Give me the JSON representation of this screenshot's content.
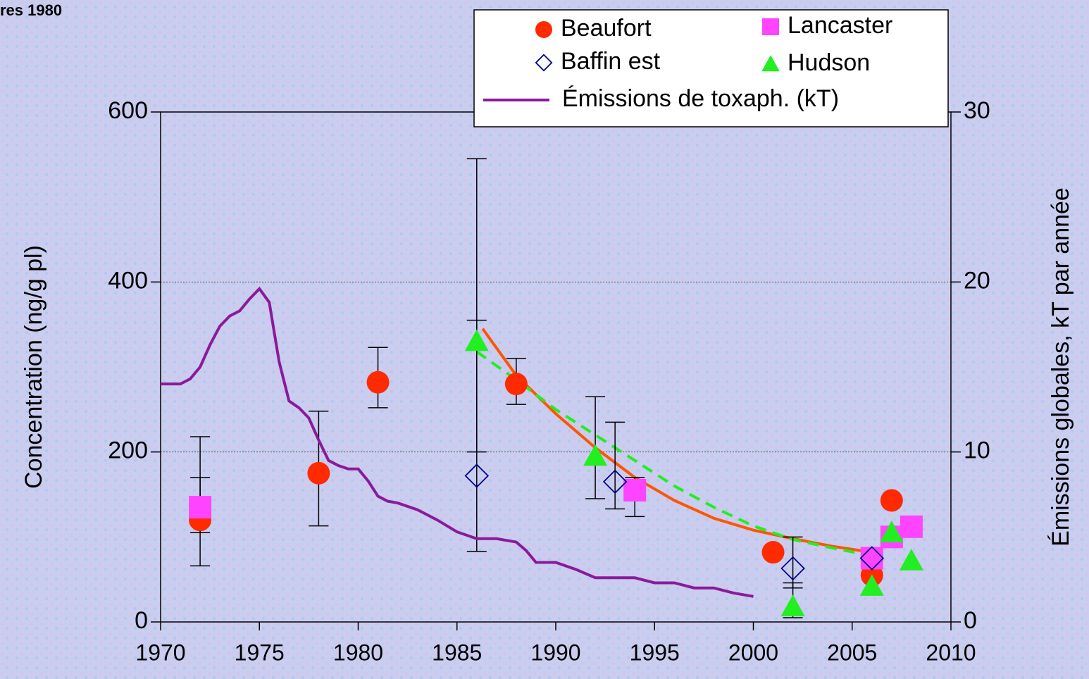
{
  "chart_data": {
    "type": "scatter",
    "title": "res 1980",
    "y_label": "Concentration (ng/g pl)",
    "y2_label": "Émissions globales, kT par année",
    "xlim": [
      1970,
      2010
    ],
    "xticks": [
      1970,
      1975,
      1980,
      1985,
      1990,
      1995,
      2000,
      2005,
      2010
    ],
    "ylim": [
      0,
      600
    ],
    "yticks": [
      0,
      200,
      400,
      600
    ],
    "y2lim": [
      0,
      30
    ],
    "y2ticks": [
      0,
      10,
      20,
      30
    ],
    "grid": true,
    "legend": "top right",
    "series": [
      {
        "name": "Beaufort",
        "color": "#ff2a00",
        "marker": "circle",
        "x": [
          1972,
          1978,
          1981,
          1988,
          2001,
          2006,
          2007
        ],
        "values": [
          120,
          175,
          282,
          280,
          82,
          55,
          143
        ],
        "errors": [
          [
            15,
            50
          ],
          [
            62,
            73
          ],
          [
            30,
            41
          ],
          [
            24,
            30
          ],
          null,
          null,
          null
        ]
      },
      {
        "name": "Lancaster",
        "color": "#ff44ff",
        "marker": "square",
        "x": [
          1972,
          1994,
          2006,
          2007,
          2008
        ],
        "values": [
          135,
          155,
          75,
          100,
          112
        ],
        "errors": [
          [
            69,
            83
          ],
          [
            31,
            15
          ],
          null,
          null,
          null
        ]
      },
      {
        "name": "Baffin est",
        "color": "#00008b",
        "marker": "diamond",
        "x": [
          1986,
          1993,
          2002,
          2006
        ],
        "values": [
          172,
          165,
          63,
          75
        ],
        "errors": [
          [
            89,
            373
          ],
          [
            32,
            70
          ],
          [
            23,
            37
          ],
          null
        ]
      },
      {
        "name": "Hudson",
        "color": "#22ee22",
        "marker": "triangle",
        "x": [
          1986,
          1992,
          2002,
          2006,
          2007,
          2008
        ],
        "values": [
          330,
          195,
          18,
          42,
          105,
          72
        ],
        "errors": [
          [
            130,
            25
          ],
          [
            50,
            70
          ],
          [
            13,
            28
          ],
          null,
          null,
          null
        ]
      },
      {
        "name": "Émissions de toxaph. (kT)",
        "color": "#8b1a9a",
        "marker": "line",
        "axis": "y2",
        "x": [
          1970,
          1971,
          1971.5,
          1972,
          1972.5,
          1973,
          1973.5,
          1974,
          1974.5,
          1975,
          1975.5,
          1976,
          1976.5,
          1977,
          1977.5,
          1978,
          1978.5,
          1979,
          1979.5,
          1980,
          1980.5,
          1981,
          1981.5,
          1982,
          1983,
          1984,
          1985,
          1986,
          1987,
          1988,
          1988.5,
          1989,
          1990,
          1991,
          1992,
          1993,
          1994,
          1995,
          1996,
          1997,
          1998,
          1999,
          2000
        ],
        "values": [
          14,
          14,
          14.3,
          15,
          16.3,
          17.4,
          18,
          18.3,
          19,
          19.6,
          18.8,
          15.3,
          13,
          12.6,
          12,
          10.7,
          9.5,
          9.2,
          9,
          9,
          8.3,
          7.4,
          7.1,
          7,
          6.6,
          6,
          5.3,
          4.9,
          4.9,
          4.7,
          4.2,
          3.5,
          3.5,
          3.1,
          2.6,
          2.6,
          2.6,
          2.3,
          2.3,
          2,
          2,
          1.7,
          1.5
        ]
      }
    ],
    "fits": [
      {
        "color": "#ff5500",
        "dashed": false,
        "x": [
          1986.3,
          1988,
          1990,
          1992,
          1994,
          1996,
          1998,
          2000,
          2002,
          2004,
          2006
        ],
        "values": [
          345,
          290,
          245,
          205,
          170,
          143,
          122,
          108,
          98,
          89,
          82
        ]
      },
      {
        "color": "#22ee22",
        "dashed": true,
        "x": [
          1986,
          1988,
          1990,
          1992,
          1994,
          1996,
          1998,
          2000,
          2002,
          2004,
          2006
        ],
        "values": [
          318,
          285,
          250,
          220,
          190,
          160,
          135,
          113,
          97,
          87,
          78
        ]
      }
    ]
  }
}
